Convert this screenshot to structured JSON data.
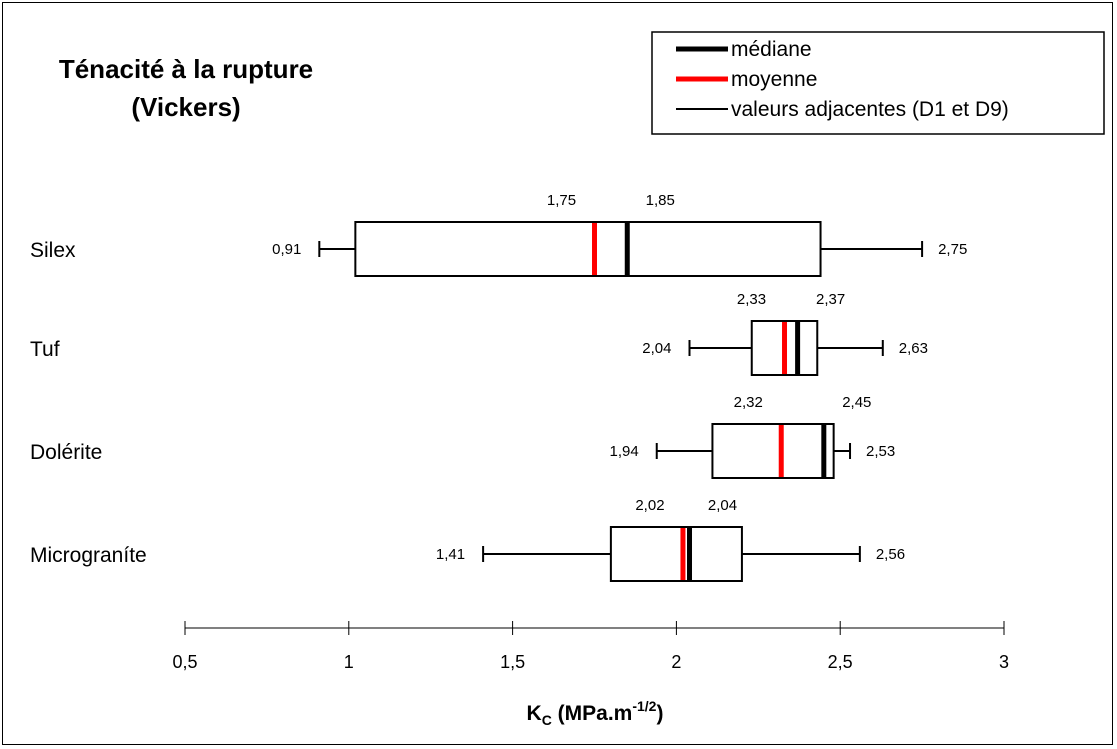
{
  "chart_data": {
    "type": "boxplot",
    "title": [
      "Ténacité à la rupture",
      "(Vickers)"
    ],
    "xlabel": {
      "main": "K",
      "sub": "C",
      "rest": " (MPa.m",
      "sup": "-1/2",
      "end": ")"
    },
    "xlim": [
      0.5,
      3
    ],
    "ticks": [
      {
        "value": 0.5,
        "label": "0,5"
      },
      {
        "value": 1,
        "label": "1"
      },
      {
        "value": 1.5,
        "label": "1,5"
      },
      {
        "value": 2,
        "label": "2"
      },
      {
        "value": 2.5,
        "label": "2,5"
      },
      {
        "value": 3,
        "label": "3"
      }
    ],
    "legend": {
      "position": "top-right",
      "items": [
        {
          "label": "médiane",
          "color": "#000000",
          "style": "thick"
        },
        {
          "label": "moyenne",
          "color": "#ff0000",
          "style": "thick"
        },
        {
          "label": "valeurs adjacentes (D1 et D9)",
          "color": "#000000",
          "style": "thin"
        }
      ]
    },
    "categories": [
      {
        "name": "Silex",
        "low": 0.91,
        "q1": 1.02,
        "mean": 1.75,
        "median": 1.85,
        "q3": 2.44,
        "high": 2.75,
        "low_label": "0,91",
        "high_label": "2,75",
        "mean_label": "1,75",
        "median_label": "1,85"
      },
      {
        "name": "Tuf",
        "low": 2.04,
        "q1": 2.23,
        "mean": 2.33,
        "median": 2.37,
        "q3": 2.43,
        "high": 2.63,
        "low_label": "2,04",
        "high_label": "2,63",
        "mean_label": "2,33",
        "median_label": "2,37"
      },
      {
        "name": "Dolérite",
        "low": 1.94,
        "q1": 2.11,
        "mean": 2.32,
        "median": 2.45,
        "q3": 2.48,
        "high": 2.53,
        "low_label": "1,94",
        "high_label": "2,53",
        "mean_label": "2,32",
        "median_label": "2,45"
      },
      {
        "name": "Micrograníte",
        "low": 1.41,
        "q1": 1.8,
        "mean": 2.02,
        "median": 2.04,
        "q3": 2.2,
        "high": 2.56,
        "low_label": "1,41",
        "high_label": "2,56",
        "mean_label": "2,02",
        "median_label": "2,04"
      }
    ],
    "colors": {
      "mean": "#ff0000",
      "median": "#000000"
    }
  }
}
